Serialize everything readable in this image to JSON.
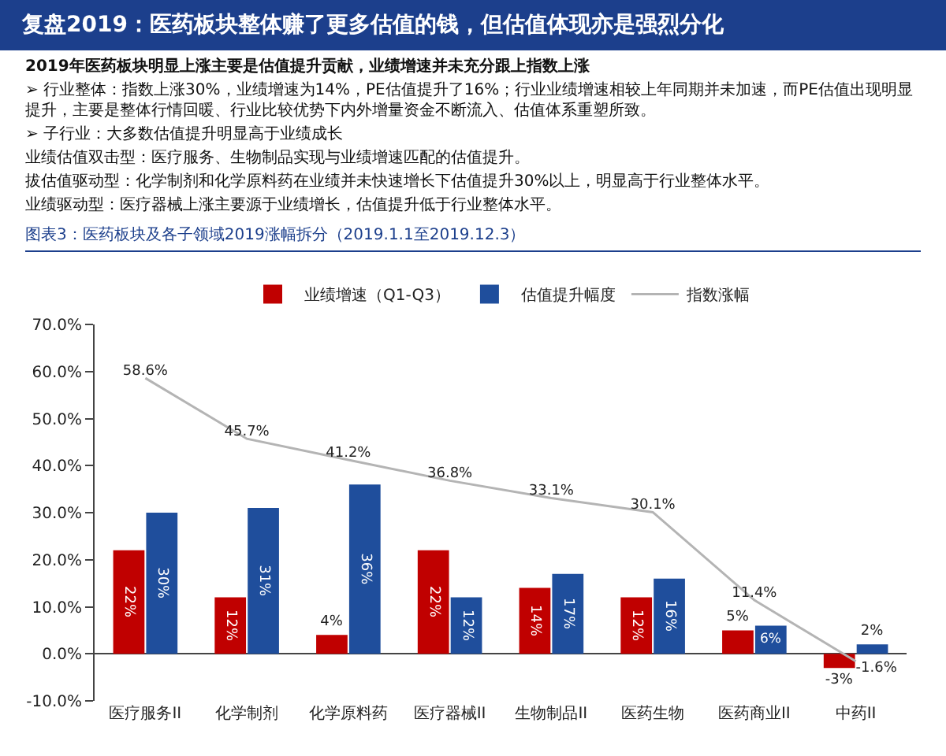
{
  "chart_data": {
    "type": "bar",
    "title": "复盘2019：医药板块整体赚了更多估值的钱，但估值体现亦是强烈分化",
    "annotations": [
      "2019年医药板块明显上涨主要是估值提升贡献，业绩增速并未充分跟上指数上涨",
      "➢ 行业整体：指数上涨30%，业绩增速为14%，PE估值提升了16%；行业业绩增速相较上年同期并未加速，而PE估值出现明显提升，主要是整体行情回暖、行业比较优势下内外增量资金不断流入、估值体系重塑所致。",
      "➢ 子行业：大多数估值提升明显高于业绩成长",
      "业绩估值双击型：医疗服务、生物制品实现与业绩增速匹配的估值提升。",
      "拔估值驱动型：化学制剂和化学原料药在业绩并未快速增长下估值提升30%以上，明显高于行业整体水平。",
      "业绩驱动型：医疗器械上涨主要源于业绩增长，估值提升低于行业整体水平。"
    ],
    "subtitle": "图表3：医药板块及各子领域2019涨幅拆分（2019.1.1至2019.12.3）",
    "categories": [
      "医疗服务II",
      "化学制剂",
      "化学原料药",
      "医疗器械II",
      "生物制品II",
      "医药生物",
      "医药商业II",
      "中药II"
    ],
    "series": [
      {
        "name": "业绩增速（Q1-Q3）",
        "color": "#c00000",
        "values": [
          22,
          12,
          4,
          22,
          14,
          12,
          5,
          -3
        ],
        "value_labels": [
          "22%",
          "12%",
          "4%",
          "22%",
          "14%",
          "12%",
          "5%",
          "-3%"
        ]
      },
      {
        "name": "估值提升幅度",
        "color": "#1f4e9c",
        "values": [
          30,
          31,
          36,
          12,
          17,
          16,
          6,
          2
        ],
        "value_labels": [
          "30%",
          "31%",
          "36%",
          "12%",
          "17%",
          "16%",
          "6%",
          "2%"
        ]
      },
      {
        "name": "指数涨幅",
        "type": "line",
        "color": "#b4b4b4",
        "values": [
          58.6,
          45.7,
          41.2,
          36.8,
          33.1,
          30.1,
          11.4,
          -1.6
        ],
        "value_labels": [
          "58.6%",
          "45.7%",
          "41.2%",
          "36.8%",
          "33.1%",
          "30.1%",
          "11.4%",
          "-1.6%"
        ]
      }
    ],
    "ylim": [
      -10,
      70
    ],
    "yticks": [
      {
        "value": -10,
        "label": "-10.0%"
      },
      {
        "value": 0,
        "label": "0.0%"
      },
      {
        "value": 10,
        "label": "10.0%"
      },
      {
        "value": 20,
        "label": "20.0%"
      },
      {
        "value": 30,
        "label": "30.0%"
      },
      {
        "value": 40,
        "label": "40.0%"
      },
      {
        "value": 50,
        "label": "50.0%"
      },
      {
        "value": 60,
        "label": "60.0%"
      },
      {
        "value": 70,
        "label": "70.0%"
      }
    ],
    "legend": "top",
    "marker": "none"
  }
}
